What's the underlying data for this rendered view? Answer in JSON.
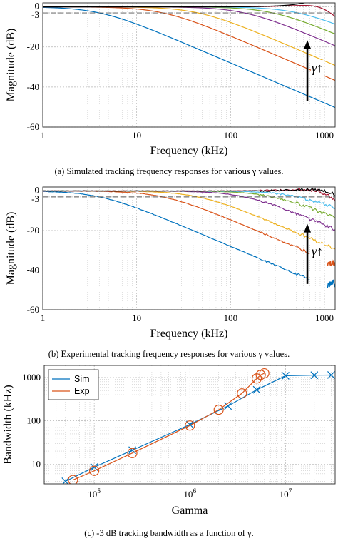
{
  "colors": {
    "blue": "#0072bd",
    "orange": "#d95319",
    "yellow": "#edb120",
    "purple": "#7e2f8e",
    "green": "#77ac30",
    "cyan": "#4dbeee",
    "darkred": "#a2142f",
    "black": "#000000"
  },
  "chart_data": [
    {
      "type": "line",
      "id": "a",
      "caption": "(a) Simulated tracking frequency responses for various γ values.",
      "xlabel": "Frequency (kHz)",
      "ylabel": "Magnitude (dB)",
      "xscale": "log",
      "xlim": [
        1,
        1300
      ],
      "ylim": [
        -60,
        2
      ],
      "xticks": [
        1,
        10,
        100,
        1000
      ],
      "xtick_labels": [
        "1",
        "10",
        "100",
        "1000"
      ],
      "yticks": [
        0,
        -3,
        -20,
        -40,
        -60
      ],
      "ytick_labels": [
        "0",
        "-3",
        "-20",
        "-40",
        "-60"
      ],
      "reference_line_db": -3,
      "grid": true,
      "annotation": "γ↑",
      "curves": [
        {
          "color": "blue",
          "cutoff_khz": 4,
          "order": 1,
          "xmax": 1300
        },
        {
          "color": "orange",
          "cutoff_khz": 19,
          "order": 1,
          "xmax": 1300
        },
        {
          "color": "yellow",
          "cutoff_khz": 45,
          "order": 1,
          "xmax": 1300
        },
        {
          "color": "purple",
          "cutoff_khz": 140,
          "order": 1,
          "xmax": 1300
        },
        {
          "color": "green",
          "cutoff_khz": 280,
          "order": 1,
          "xmax": 1300
        },
        {
          "color": "cyan",
          "cutoff_khz": 520,
          "order": 1,
          "xmax": 1300
        },
        {
          "color": "darkred",
          "cutoff_khz": 950,
          "order": 2,
          "xmax": 1300
        },
        {
          "color": "black",
          "cutoff_khz": 1150,
          "order": 2,
          "peak_db": 1.8,
          "xmax": 1300
        }
      ]
    },
    {
      "type": "line",
      "id": "b",
      "caption": "(b) Experimental tracking frequency responses for various γ values.",
      "xlabel": "Frequency (kHz)",
      "ylabel": "Magnitude (dB)",
      "xscale": "log",
      "xlim": [
        1,
        1300
      ],
      "ylim": [
        -60,
        2
      ],
      "xticks": [
        1,
        10,
        100,
        1000
      ],
      "xtick_labels": [
        "1",
        "10",
        "100",
        "1000"
      ],
      "yticks": [
        0,
        -3,
        -20,
        -40,
        -60
      ],
      "ytick_labels": [
        "0",
        "-3",
        "-20",
        "-40",
        "-60"
      ],
      "reference_line_db": -3,
      "grid": true,
      "annotation": "γ↑",
      "curves": [
        {
          "color": "blue",
          "cutoff_khz": 4,
          "order": 1,
          "xmax": 680,
          "tail_db": -47
        },
        {
          "color": "orange",
          "cutoff_khz": 19,
          "order": 1,
          "xmax": 680,
          "tail_db": -36
        },
        {
          "color": "yellow",
          "cutoff_khz": 45,
          "order": 1,
          "xmax": 1300
        },
        {
          "color": "purple",
          "cutoff_khz": 140,
          "order": 1,
          "xmax": 1300
        },
        {
          "color": "green",
          "cutoff_khz": 280,
          "order": 1,
          "xmax": 1300
        },
        {
          "color": "cyan",
          "cutoff_khz": 520,
          "order": 1,
          "xmax": 1300
        },
        {
          "color": "darkred",
          "cutoff_khz": 950,
          "order": 2,
          "xmax": 1300
        },
        {
          "color": "black",
          "cutoff_khz": 1150,
          "order": 2,
          "xmax": 1300
        }
      ]
    },
    {
      "type": "line",
      "id": "c",
      "caption": "(c) -3 dB tracking bandwidth as a function of γ.",
      "xlabel": "Gamma",
      "ylabel": "Bandwidth (kHz)",
      "xscale": "log",
      "yscale": "log",
      "xlim": [
        30000,
        33000000
      ],
      "ylim": [
        3.5,
        1900
      ],
      "xticks": [
        100000,
        1000000,
        10000000
      ],
      "xtick_labels": [
        "10^5",
        "10^6",
        "10^7"
      ],
      "yticks": [
        10,
        100,
        1000
      ],
      "ytick_labels": [
        "10",
        "100",
        "1000"
      ],
      "grid": true,
      "legend_position": "top-left",
      "series": [
        {
          "name": "Sim",
          "color": "blue",
          "marker": "x",
          "x": [
            50000,
            100000,
            250000,
            1000000,
            2500000,
            5000000,
            10000000,
            20000000,
            30000000
          ],
          "y": [
            4,
            8.5,
            21,
            82,
            220,
            520,
            1100,
            1130,
            1140
          ]
        },
        {
          "name": "Exp",
          "color": "orange",
          "marker": "o",
          "x": [
            60000,
            100000,
            250000,
            1000000,
            2000000,
            3500000,
            5000000,
            5500000,
            6000000
          ],
          "y": [
            4.3,
            7,
            18,
            78,
            180,
            430,
            950,
            1150,
            1250
          ]
        }
      ]
    }
  ]
}
